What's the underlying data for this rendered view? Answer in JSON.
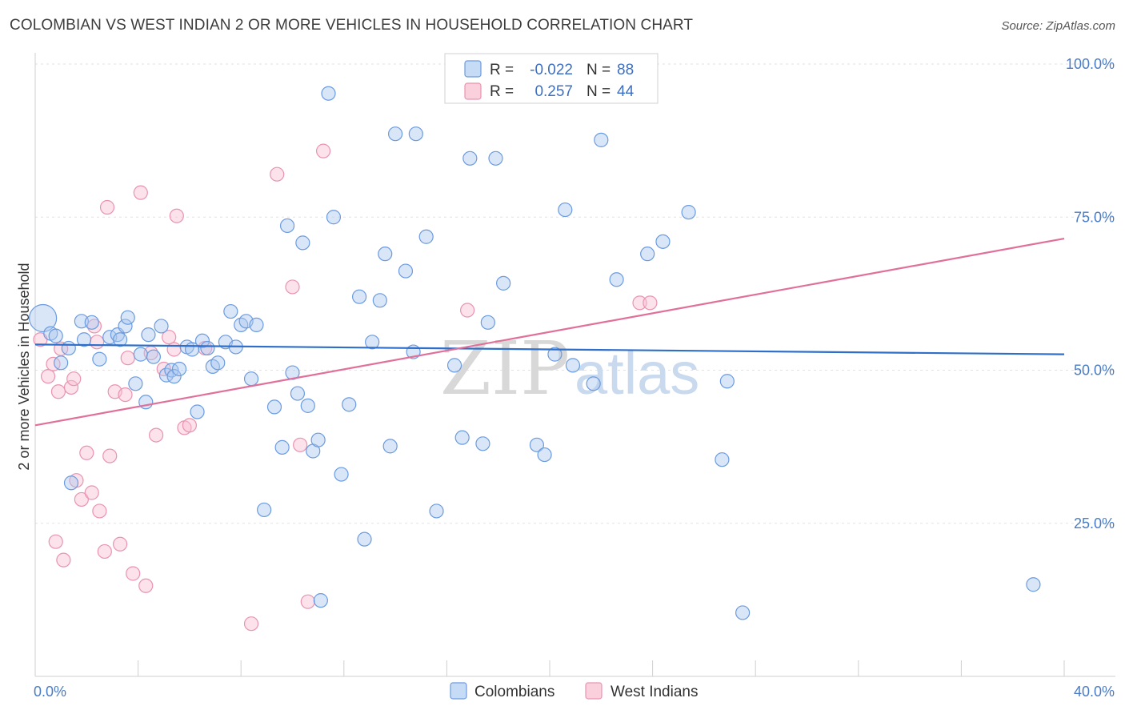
{
  "title": "COLOMBIAN VS WEST INDIAN 2 OR MORE VEHICLES IN HOUSEHOLD CORRELATION CHART",
  "source": "Source: ZipAtlas.com",
  "watermark": {
    "zip": "ZIP",
    "atlas": "atlas"
  },
  "legend": {
    "rows": [
      {
        "r_label": "R =",
        "r_value": "-0.022",
        "n_label": "N =",
        "n_value": "88"
      },
      {
        "r_label": "R =",
        "r_value": "0.257",
        "n_label": "N =",
        "n_value": "44"
      }
    ]
  },
  "chart_data": {
    "type": "scatter",
    "title": "COLOMBIAN VS WEST INDIAN 2 OR MORE VEHICLES IN HOUSEHOLD CORRELATION CHART",
    "xlabel": "",
    "ylabel": "2 or more Vehicles in Household",
    "xlim": [
      0,
      40
    ],
    "ylim": [
      0,
      100
    ],
    "x_tick_labels": [
      "0.0%",
      "40.0%"
    ],
    "y_ticks": [
      25,
      50,
      75,
      100
    ],
    "y_tick_labels": [
      "25.0%",
      "50.0%",
      "75.0%",
      "100.0%"
    ],
    "grid": true,
    "legend_position": "bottom",
    "colors": {
      "Colombians": "#4a86d8",
      "West Indians": "#e77fa0",
      "line_blue": "#2f6fc9",
      "line_pink": "#e0709a"
    },
    "series": [
      {
        "name": "Colombians",
        "trend": {
          "x": [
            0,
            40
          ],
          "y": [
            54.2,
            52.6
          ]
        },
        "points": [
          [
            0.3,
            58.5
          ],
          [
            0.6,
            56.0
          ],
          [
            0.8,
            55.6
          ],
          [
            1.0,
            51.2
          ],
          [
            1.3,
            53.6
          ],
          [
            1.4,
            31.6
          ],
          [
            1.8,
            58.0
          ],
          [
            1.9,
            55.0
          ],
          [
            2.2,
            57.8
          ],
          [
            2.5,
            51.8
          ],
          [
            2.9,
            55.4
          ],
          [
            3.2,
            55.8
          ],
          [
            3.3,
            55.0
          ],
          [
            3.5,
            57.2
          ],
          [
            3.6,
            58.6
          ],
          [
            3.9,
            47.8
          ],
          [
            4.1,
            52.6
          ],
          [
            4.3,
            44.8
          ],
          [
            4.4,
            55.8
          ],
          [
            4.6,
            52.2
          ],
          [
            4.9,
            57.2
          ],
          [
            5.1,
            49.2
          ],
          [
            5.3,
            50.0
          ],
          [
            5.4,
            49.0
          ],
          [
            5.6,
            50.2
          ],
          [
            5.9,
            53.8
          ],
          [
            6.1,
            53.4
          ],
          [
            6.3,
            43.2
          ],
          [
            6.5,
            54.8
          ],
          [
            6.7,
            53.6
          ],
          [
            6.9,
            50.6
          ],
          [
            7.1,
            51.2
          ],
          [
            7.4,
            54.6
          ],
          [
            7.6,
            59.6
          ],
          [
            7.8,
            53.8
          ],
          [
            8.0,
            57.4
          ],
          [
            8.2,
            58.0
          ],
          [
            8.4,
            48.6
          ],
          [
            8.6,
            57.4
          ],
          [
            8.9,
            27.2
          ],
          [
            9.3,
            44.0
          ],
          [
            9.6,
            37.4
          ],
          [
            9.8,
            73.6
          ],
          [
            10.0,
            49.6
          ],
          [
            10.2,
            46.2
          ],
          [
            10.4,
            70.8
          ],
          [
            10.6,
            44.2
          ],
          [
            10.8,
            36.8
          ],
          [
            11.0,
            38.6
          ],
          [
            11.1,
            12.4
          ],
          [
            11.4,
            95.2
          ],
          [
            11.6,
            75.0
          ],
          [
            11.9,
            33.0
          ],
          [
            12.2,
            44.4
          ],
          [
            12.6,
            62.0
          ],
          [
            12.8,
            22.4
          ],
          [
            13.1,
            54.6
          ],
          [
            13.4,
            61.4
          ],
          [
            13.6,
            69.0
          ],
          [
            13.8,
            37.6
          ],
          [
            14.0,
            88.6
          ],
          [
            14.4,
            66.2
          ],
          [
            14.7,
            53.0
          ],
          [
            14.8,
            88.6
          ],
          [
            15.2,
            71.8
          ],
          [
            15.6,
            27.0
          ],
          [
            16.3,
            50.8
          ],
          [
            16.6,
            39.0
          ],
          [
            16.9,
            84.6
          ],
          [
            17.4,
            38.0
          ],
          [
            17.6,
            57.8
          ],
          [
            17.9,
            84.6
          ],
          [
            18.2,
            64.2
          ],
          [
            19.5,
            37.8
          ],
          [
            19.8,
            36.2
          ],
          [
            20.2,
            52.6
          ],
          [
            20.6,
            76.2
          ],
          [
            20.9,
            50.8
          ],
          [
            21.7,
            47.8
          ],
          [
            22.0,
            87.6
          ],
          [
            22.6,
            64.8
          ],
          [
            23.8,
            69.0
          ],
          [
            24.4,
            71.0
          ],
          [
            25.4,
            75.8
          ],
          [
            26.7,
            35.4
          ],
          [
            26.9,
            48.2
          ],
          [
            27.5,
            10.4
          ],
          [
            38.8,
            15.0
          ]
        ]
      },
      {
        "name": "West Indians",
        "trend": {
          "x": [
            0,
            40
          ],
          "y": [
            41.0,
            71.5
          ]
        },
        "points": [
          [
            0.2,
            55.0
          ],
          [
            0.5,
            49.0
          ],
          [
            0.7,
            51.0
          ],
          [
            0.9,
            46.5
          ],
          [
            1.0,
            53.5
          ],
          [
            1.1,
            19.0
          ],
          [
            1.4,
            47.2
          ],
          [
            1.6,
            32.0
          ],
          [
            1.8,
            28.9
          ],
          [
            2.0,
            36.5
          ],
          [
            2.2,
            30.0
          ],
          [
            2.3,
            57.2
          ],
          [
            2.5,
            27.0
          ],
          [
            2.7,
            20.4
          ],
          [
            2.9,
            36.0
          ],
          [
            3.1,
            46.5
          ],
          [
            3.3,
            21.6
          ],
          [
            3.5,
            46.0
          ],
          [
            3.8,
            16.8
          ],
          [
            4.1,
            79.0
          ],
          [
            4.3,
            14.8
          ],
          [
            4.5,
            52.8
          ],
          [
            4.7,
            39.4
          ],
          [
            5.0,
            50.2
          ],
          [
            5.2,
            55.4
          ],
          [
            5.4,
            53.4
          ],
          [
            5.5,
            75.2
          ],
          [
            5.8,
            40.6
          ],
          [
            6.0,
            41.0
          ],
          [
            2.8,
            76.6
          ],
          [
            8.4,
            8.6
          ],
          [
            9.4,
            82.0
          ],
          [
            10.0,
            63.6
          ],
          [
            10.3,
            37.8
          ],
          [
            10.6,
            12.2
          ],
          [
            11.2,
            85.8
          ],
          [
            0.8,
            22.0
          ],
          [
            1.5,
            48.6
          ],
          [
            3.6,
            52.0
          ],
          [
            16.8,
            59.8
          ],
          [
            23.5,
            61.0
          ],
          [
            23.9,
            61.0
          ],
          [
            6.6,
            53.6
          ],
          [
            2.4,
            54.6
          ]
        ]
      }
    ]
  }
}
